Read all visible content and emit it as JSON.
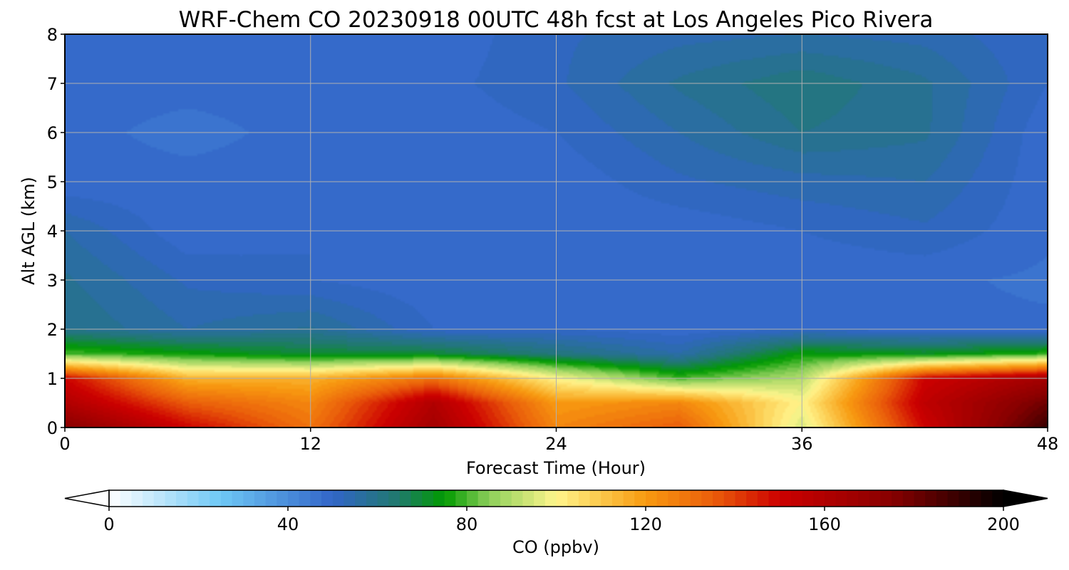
{
  "chart_data": {
    "type": "heatmap",
    "title": "WRF-Chem CO  20230918 00UTC 48h fcst at Los Angeles Pico Rivera",
    "xlabel": "Forecast Time (Hour)",
    "ylabel": "Alt AGL (km)",
    "xlim": [
      0,
      48
    ],
    "ylim": [
      0,
      8
    ],
    "xticks": [
      0,
      12,
      24,
      36,
      48
    ],
    "yticks": [
      0,
      1,
      2,
      3,
      4,
      5,
      6,
      7,
      8
    ],
    "grid": true,
    "x_hours": [
      0,
      6,
      12,
      18,
      24,
      30,
      36,
      42,
      48
    ],
    "y_km": [
      0,
      0.5,
      1,
      1.5,
      2,
      3,
      4,
      5,
      6,
      7,
      8
    ],
    "values_ppbv": [
      [
        175,
        150,
        130,
        165,
        125,
        135,
        95,
        150,
        190
      ],
      [
        160,
        135,
        125,
        160,
        120,
        125,
        100,
        155,
        180
      ],
      [
        150,
        115,
        115,
        130,
        100,
        80,
        90,
        150,
        165
      ],
      [
        80,
        75,
        70,
        70,
        62,
        55,
        75,
        72,
        78
      ],
      [
        60,
        55,
        58,
        50,
        50,
        48,
        50,
        48,
        48
      ],
      [
        58,
        52,
        50,
        48,
        48,
        48,
        48,
        48,
        47
      ],
      [
        55,
        48,
        50,
        48,
        48,
        48,
        50,
        52,
        48
      ],
      [
        48,
        48,
        48,
        48,
        48,
        52,
        54,
        55,
        48
      ],
      [
        48,
        47,
        48,
        48,
        50,
        55,
        60,
        58,
        48
      ],
      [
        48,
        48,
        48,
        49,
        52,
        58,
        62,
        58,
        50
      ],
      [
        48,
        48,
        48,
        48,
        52,
        54,
        55,
        54,
        50
      ]
    ],
    "colorbar": {
      "label": "CO  (ppbv)",
      "min": 0,
      "max": 200,
      "ticks": [
        0,
        40,
        80,
        120,
        160,
        200
      ],
      "extend": "both",
      "location": "bottom",
      "stops": [
        {
          "v": 0,
          "c": "#ffffff"
        },
        {
          "v": 25,
          "c": "#6ec8f5"
        },
        {
          "v": 50,
          "c": "#3265c8"
        },
        {
          "v": 65,
          "c": "#1f7a6a"
        },
        {
          "v": 75,
          "c": "#009a00"
        },
        {
          "v": 85,
          "c": "#8ccf5a"
        },
        {
          "v": 100,
          "c": "#fff58c"
        },
        {
          "v": 110,
          "c": "#fbc84b"
        },
        {
          "v": 120,
          "c": "#f89a10"
        },
        {
          "v": 135,
          "c": "#ea5e0a"
        },
        {
          "v": 150,
          "c": "#cc0000"
        },
        {
          "v": 175,
          "c": "#880000"
        },
        {
          "v": 200,
          "c": "#000000"
        }
      ]
    }
  }
}
